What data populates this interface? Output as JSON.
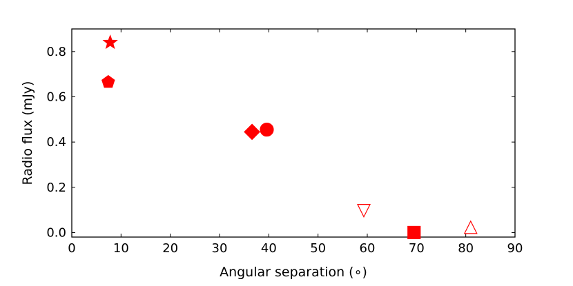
{
  "chart_data": {
    "type": "scatter",
    "title": "",
    "xlabel": "Angular separation (∘)",
    "ylabel": "Radio flux (mJy)",
    "xlim": [
      0,
      90
    ],
    "ylim": [
      -0.02,
      0.9
    ],
    "xticks": [
      0,
      10,
      20,
      30,
      40,
      50,
      60,
      70,
      80,
      90
    ],
    "yticks": [
      0.0,
      0.2,
      0.4,
      0.6,
      0.8
    ],
    "ytick_labels": [
      "0.0",
      "0.2",
      "0.4",
      "0.6",
      "0.8"
    ],
    "grid": false,
    "legend": "none",
    "color": "#ff0000",
    "points": [
      {
        "x": 7.8,
        "y": 0.84,
        "marker": "star",
        "filled": true
      },
      {
        "x": 7.4,
        "y": 0.665,
        "marker": "pentagon",
        "filled": true
      },
      {
        "x": 36.6,
        "y": 0.445,
        "marker": "diamond",
        "filled": true
      },
      {
        "x": 39.6,
        "y": 0.455,
        "marker": "circle",
        "filled": true
      },
      {
        "x": 59.3,
        "y": 0.1,
        "marker": "triangle-down",
        "filled": false
      },
      {
        "x": 69.5,
        "y": 0.0,
        "marker": "square",
        "filled": true
      },
      {
        "x": 81.0,
        "y": 0.02,
        "marker": "triangle-up",
        "filled": false
      }
    ]
  }
}
